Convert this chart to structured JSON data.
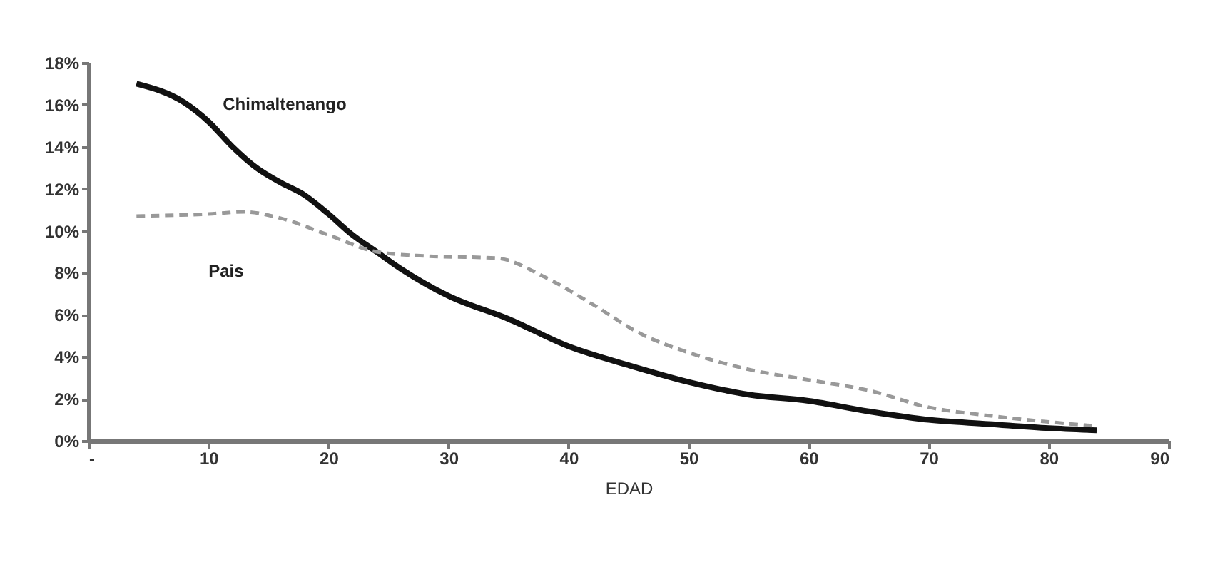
{
  "chart_data": {
    "type": "line",
    "xlabel": "EDAD",
    "xlim": [
      0,
      90
    ],
    "xticks": [
      {
        "value": 0,
        "label": "-"
      },
      10,
      20,
      30,
      40,
      50,
      60,
      70,
      80,
      90
    ],
    "ylim": [
      0,
      18
    ],
    "yticks": [
      {
        "value": 0,
        "label": "0%"
      },
      {
        "value": 2,
        "label": "2%"
      },
      {
        "value": 4,
        "label": "4%"
      },
      {
        "value": 6,
        "label": "6%"
      },
      {
        "value": 8,
        "label": "8%"
      },
      {
        "value": 10,
        "label": "10%"
      },
      {
        "value": 12,
        "label": "12%"
      },
      {
        "value": 14,
        "label": "14%"
      },
      {
        "value": 16,
        "label": "16%"
      },
      {
        "value": 18,
        "label": "18%"
      }
    ],
    "grid": false,
    "marker": "none",
    "series": [
      {
        "name": "Chimaltenango",
        "color": "#111111",
        "line_style": "solid",
        "x": [
          4,
          8,
          10,
          12,
          14,
          16,
          18,
          20,
          22,
          24,
          26,
          28,
          30,
          35,
          40,
          45,
          50,
          55,
          60,
          65,
          70,
          75,
          80,
          84
        ],
        "values": [
          17.0,
          16.1,
          15.2,
          14.0,
          13.0,
          12.3,
          11.7,
          10.8,
          9.8,
          9.0,
          8.2,
          7.5,
          6.9,
          5.8,
          4.5,
          3.6,
          2.8,
          2.2,
          1.9,
          1.4,
          1.0,
          0.8,
          0.6,
          0.5
        ]
      },
      {
        "name": "Pais",
        "color": "#999999",
        "line_style": "dashed",
        "x": [
          4,
          10,
          13,
          16,
          20,
          24,
          28,
          34,
          38,
          42,
          46,
          50,
          55,
          60,
          65,
          70,
          75,
          80,
          84
        ],
        "values": [
          10.7,
          10.8,
          10.9,
          10.6,
          9.8,
          9.0,
          8.8,
          8.7,
          7.8,
          6.5,
          5.1,
          4.2,
          3.4,
          2.9,
          2.4,
          1.6,
          1.2,
          0.9,
          0.7
        ]
      }
    ]
  }
}
